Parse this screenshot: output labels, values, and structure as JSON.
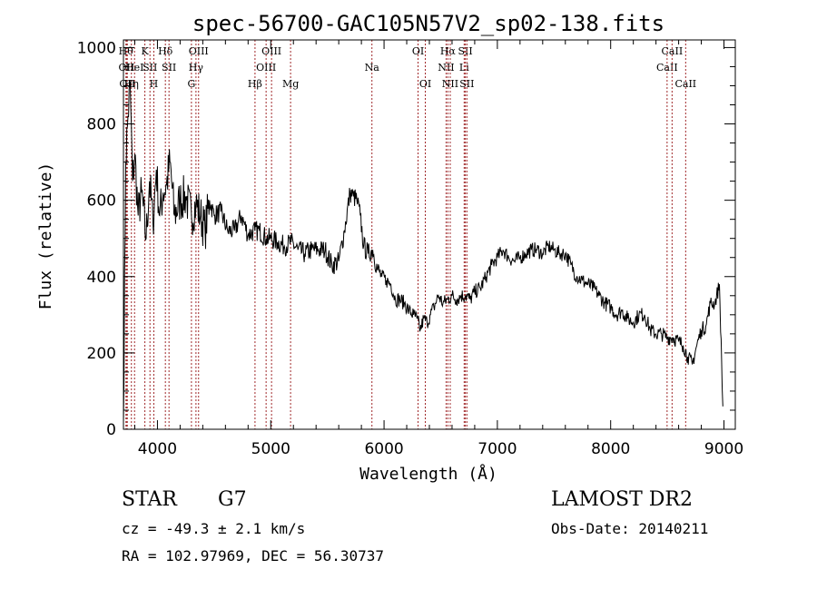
{
  "chart_data": {
    "type": "line",
    "title": "spec-56700-GAC105N57V2_sp02-138.fits",
    "xlabel": "Wavelength (Å)",
    "ylabel": "Flux (relative)",
    "xlim": [
      3700,
      9100
    ],
    "ylim": [
      0,
      1020
    ],
    "xticks": [
      4000,
      5000,
      6000,
      7000,
      8000,
      9000
    ],
    "yticks": [
      0,
      200,
      400,
      600,
      800,
      1000
    ],
    "grid": false,
    "line_color": "#000000",
    "marker_color": "#a0282a",
    "series": [
      {
        "x": [
          3700,
          3720,
          3740,
          3760,
          3780,
          3800,
          3830,
          3860,
          3900,
          3930,
          3960,
          3990,
          4020,
          4050,
          4080,
          4110,
          4150,
          4200,
          4250,
          4300,
          4340,
          4380,
          4420,
          4460,
          4500,
          4560,
          4620,
          4680,
          4740,
          4800,
          4860,
          4900,
          4960,
          5000,
          5060,
          5120,
          5180,
          5240,
          5300,
          5360,
          5420,
          5480,
          5540,
          5600,
          5650,
          5700,
          5730,
          5760,
          5790,
          5820,
          5860,
          5900,
          5940,
          5980,
          6020,
          6060,
          6100,
          6140,
          6180,
          6220,
          6260,
          6290,
          6320,
          6350,
          6380,
          6410,
          6440,
          6480,
          6520,
          6560,
          6600,
          6640,
          6680,
          6720,
          6760,
          6800,
          6850,
          6900,
          6950,
          7000,
          7050,
          7100,
          7150,
          7200,
          7250,
          7300,
          7350,
          7400,
          7450,
          7500,
          7550,
          7600,
          7650,
          7700,
          7750,
          7800,
          7850,
          7900,
          7950,
          8000,
          8050,
          8100,
          8150,
          8200,
          8250,
          8300,
          8350,
          8400,
          8450,
          8500,
          8550,
          8600,
          8640,
          8680,
          8720,
          8760,
          8800,
          8840,
          8880,
          8920,
          8960,
          8990
        ],
        "values": [
          20,
          700,
          820,
          900,
          650,
          720,
          560,
          620,
          500,
          650,
          540,
          680,
          560,
          620,
          640,
          700,
          560,
          600,
          610,
          560,
          590,
          560,
          520,
          600,
          560,
          570,
          520,
          520,
          560,
          510,
          520,
          520,
          500,
          500,
          490,
          480,
          490,
          470,
          460,
          470,
          470,
          470,
          430,
          440,
          520,
          620,
          610,
          600,
          560,
          480,
          460,
          470,
          420,
          400,
          390,
          380,
          340,
          340,
          330,
          310,
          300,
          290,
          260,
          290,
          280,
          300,
          320,
          350,
          330,
          340,
          350,
          340,
          350,
          350,
          340,
          360,
          370,
          400,
          430,
          450,
          470,
          450,
          440,
          450,
          460,
          470,
          470,
          460,
          480,
          470,
          460,
          460,
          430,
          400,
          390,
          380,
          370,
          350,
          330,
          320,
          300,
          310,
          290,
          280,
          300,
          300,
          260,
          250,
          250,
          240,
          240,
          230,
          220,
          190,
          170,
          220,
          260,
          270,
          330,
          330,
          380,
          60
        ]
      }
    ],
    "line_markers": [
      {
        "x": 3722,
        "label": "Hθ",
        "row": 0
      },
      {
        "x": 3727,
        "label": "OII",
        "row": 1
      },
      {
        "x": 3734,
        "label": "OII",
        "row": 2
      },
      {
        "x": 3770,
        "label": "Hη",
        "row": 2
      },
      {
        "x": 3798,
        "label": "HeI",
        "row": 1
      },
      {
        "x": 3889,
        "label": "K",
        "row": 0
      },
      {
        "x": 3934,
        "label": "SII",
        "row": 1
      },
      {
        "x": 3968,
        "label": "H",
        "row": 2
      },
      {
        "x": 4070,
        "label": "Hδ",
        "row": 0
      },
      {
        "x": 4102,
        "label": "SII",
        "row": 1
      },
      {
        "x": 4300,
        "label": "G",
        "row": 2
      },
      {
        "x": 4340,
        "label": "Hγ",
        "row": 1
      },
      {
        "x": 4363,
        "label": "OIII",
        "row": 0
      },
      {
        "x": 4861,
        "label": "Hβ",
        "row": 2
      },
      {
        "x": 4959,
        "label": "OIII",
        "row": 1
      },
      {
        "x": 5007,
        "label": "OIII",
        "row": 0
      },
      {
        "x": 5175,
        "label": "Mg",
        "row": 2
      },
      {
        "x": 5893,
        "label": "Na",
        "row": 1
      },
      {
        "x": 6300,
        "label": "OI",
        "row": 0
      },
      {
        "x": 6364,
        "label": "OI",
        "row": 2
      },
      {
        "x": 6548,
        "label": "NII",
        "row": 1
      },
      {
        "x": 6563,
        "label": "Hα",
        "row": 0
      },
      {
        "x": 6584,
        "label": "NII",
        "row": 2
      },
      {
        "x": 6707,
        "label": "Li",
        "row": 1
      },
      {
        "x": 6717,
        "label": "SII",
        "row": 0
      },
      {
        "x": 6731,
        "label": "SII",
        "row": 2
      },
      {
        "x": 8498,
        "label": "CaII",
        "row": 1
      },
      {
        "x": 8542,
        "label": "CaII",
        "row": 0
      },
      {
        "x": 8662,
        "label": "CaII",
        "row": 2
      }
    ]
  },
  "info": {
    "object_class": "STAR",
    "subclass": "G7",
    "survey": "LAMOST DR2",
    "redshift": "cz = -49.3 ± 2.1 km/s",
    "obs_date": "Obs-Date: 20140211",
    "coordinates": "RA = 102.97969, DEC =  56.30737"
  }
}
